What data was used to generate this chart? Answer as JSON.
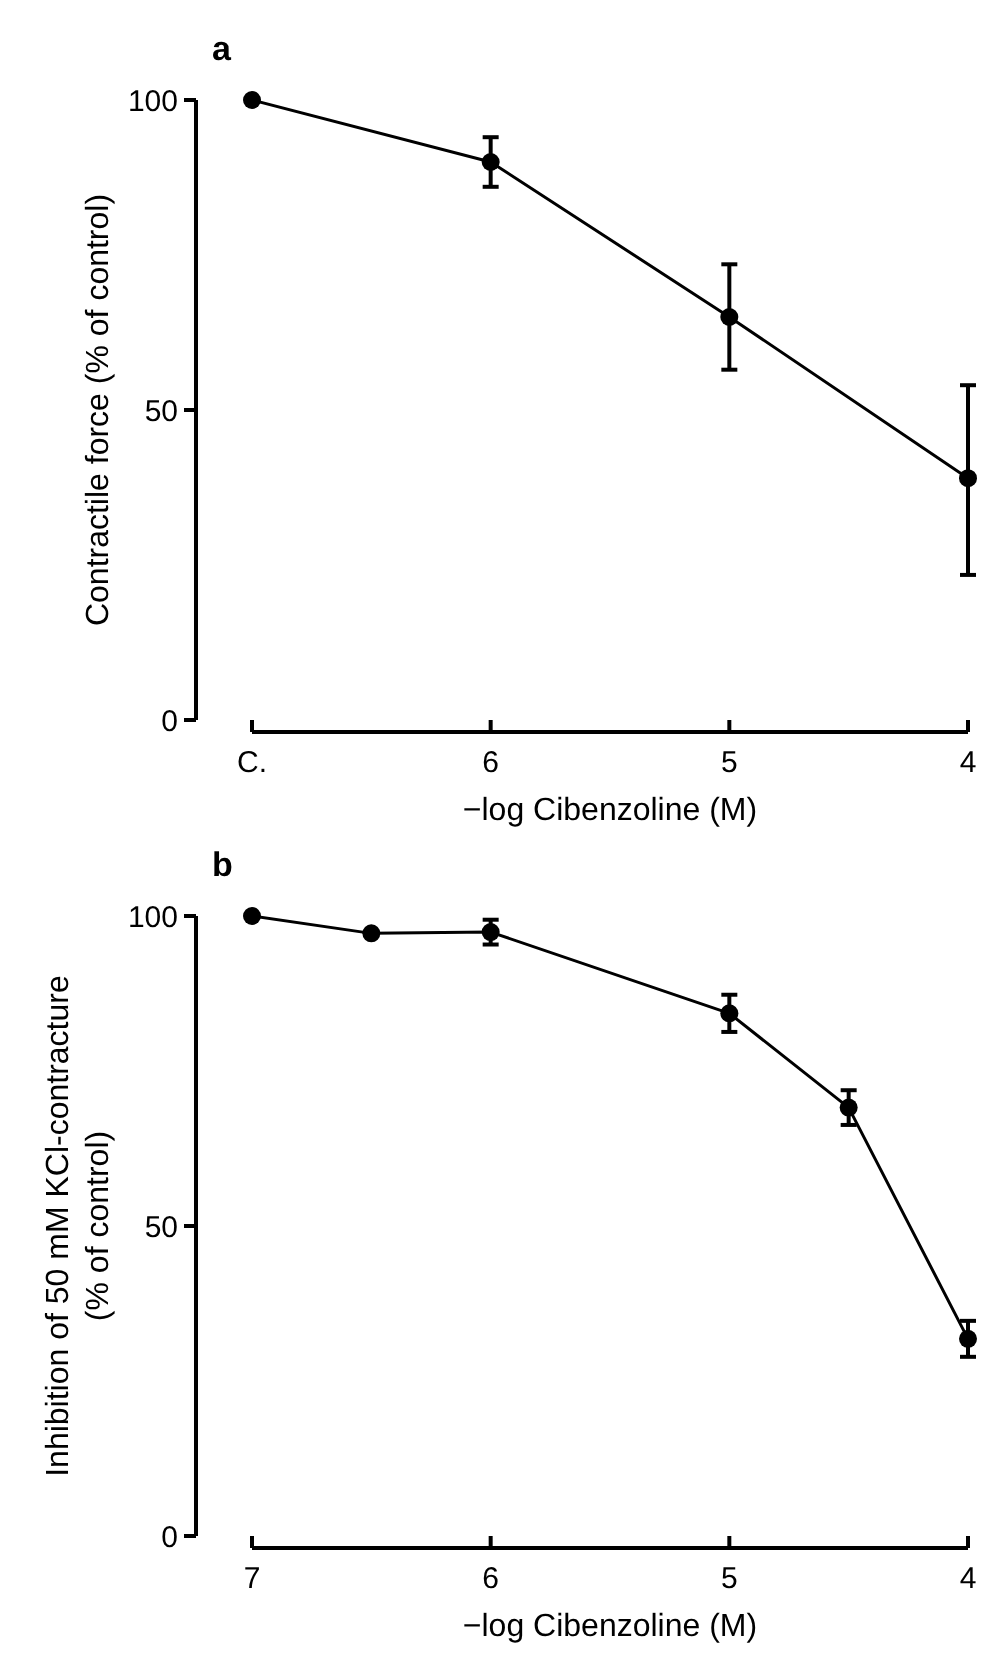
{
  "chart_data": [
    {
      "type": "line",
      "title": "a",
      "xlabel": "−log Cibenzoline (M)",
      "ylabel": "Contractile force (% of control)",
      "categories": [
        "C.",
        "6",
        "5",
        "4"
      ],
      "ylim": [
        0,
        100
      ],
      "yticks": [
        0,
        50,
        100
      ],
      "marker": "circle",
      "grid": false,
      "series": [
        {
          "color": "#000000",
          "values": [
            100,
            90,
            65,
            39
          ],
          "errors": [
            null,
            4,
            8.5,
            [
              23.4,
              54
            ]
          ]
        }
      ]
    },
    {
      "type": "line",
      "title": "b",
      "xlabel": "−log Cibenzoline (M)",
      "ylabel": "Inhibition of 50 mM KCl-contracture (% of control)",
      "x": [
        7,
        6.5,
        6,
        5,
        4.5,
        4
      ],
      "xlim": [
        7,
        4
      ],
      "xticks": [
        7,
        6,
        5,
        4
      ],
      "ylim": [
        0,
        100
      ],
      "yticks": [
        0,
        50,
        100
      ],
      "marker": "circle",
      "grid": false,
      "series": [
        {
          "color": "#000000",
          "values": [
            100,
            97.2,
            97.4,
            84.3,
            69.1,
            31.8
          ],
          "errors": [
            null,
            null,
            2,
            3,
            2.8,
            2.9
          ]
        }
      ]
    }
  ]
}
